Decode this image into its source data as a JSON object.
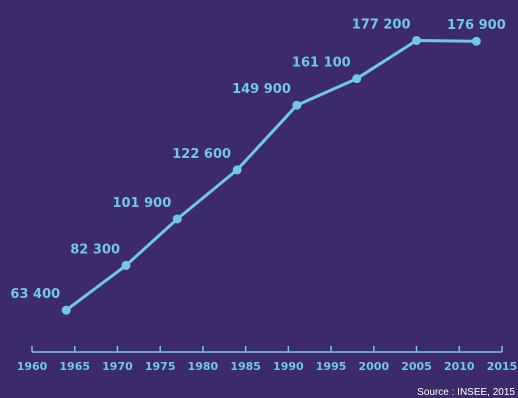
{
  "chart_data": {
    "type": "line",
    "x": [
      1964,
      1971,
      1977,
      1984,
      1991,
      1998,
      2005,
      2012
    ],
    "series": [
      {
        "values": [
          63400,
          82300,
          101900,
          122600,
          149900,
          161100,
          177200,
          176900
        ],
        "labels": [
          "63 400",
          "82 300",
          "101 900",
          "122 600",
          "149 900",
          "161 100",
          "177 200",
          "176 900"
        ]
      }
    ],
    "x_ticks": [
      "1960",
      "1965",
      "1970",
      "1975",
      "1980",
      "1985",
      "1990",
      "1995",
      "2000",
      "2005",
      "2010",
      "2015"
    ],
    "xlim": [
      1960,
      2015
    ],
    "ylim": [
      50000,
      185000
    ],
    "grid": false,
    "colors": {
      "background": "#3d2a68",
      "line": "#6fc9e0",
      "text": "#6fc9e0",
      "axis": "#6fc9e0",
      "source": "#ffffff"
    }
  },
  "source": "Source : INSEE, 2015"
}
